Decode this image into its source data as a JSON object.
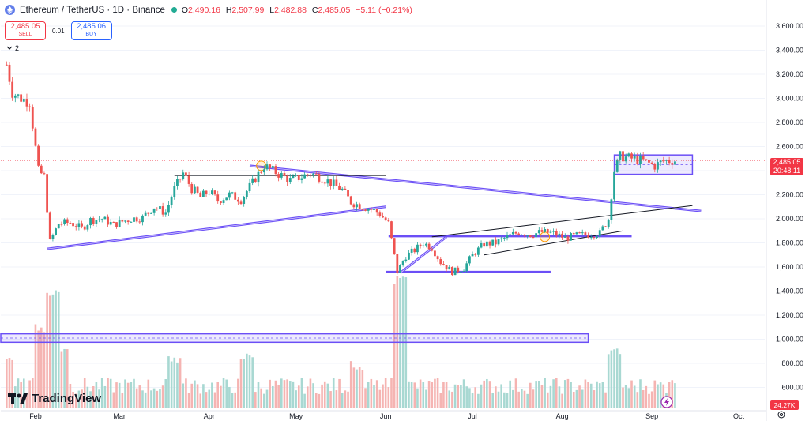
{
  "header": {
    "symbol_title": "Ethereum / TetherUS · 1D · Binance",
    "ohlc": [
      {
        "label": "O",
        "value": "2,490.16"
      },
      {
        "label": "H",
        "value": "2,507.99"
      },
      {
        "label": "L",
        "value": "2,482.88"
      },
      {
        "label": "C",
        "value": "2,485.05"
      },
      {
        "label": "",
        "value": "−5.11 (−0.21%)"
      }
    ],
    "sell_price": "2,485.05",
    "sell_label": "SELL",
    "spread": "0.01",
    "buy_price": "2,485.06",
    "buy_label": "BUY",
    "indicator_count": "2"
  },
  "price_axis": {
    "ticks": [
      "3,600.00",
      "3,400.00",
      "3,200.00",
      "3,000.00",
      "2,800.00",
      "2,600.00",
      "2,400.00",
      "2,200.00",
      "2,000.00",
      "1,800.00",
      "1,600.00",
      "1,400.00",
      "1,200.00",
      "1,000.00",
      "800.00",
      "600.00"
    ],
    "current_price": "2,485.05",
    "countdown": "20:48:11",
    "volume_value": "24.27K"
  },
  "time_axis": {
    "labels": [
      "Feb",
      "Mar",
      "Apr",
      "May",
      "Jun",
      "Jul",
      "Aug",
      "Sep",
      "Oct"
    ]
  },
  "brand": {
    "name": "TradingView"
  },
  "colors": {
    "up": "#26a69a",
    "down": "#ef5350",
    "drawing": "#6b4ff6",
    "accent_red": "#f23645",
    "accent_blue": "#2962ff"
  },
  "chart_data": {
    "type": "candlestick",
    "title": "Ethereum / TetherUS · 1D · Binance",
    "ylim": [
      500,
      3700
    ],
    "x_range": [
      "2024-01-20",
      "2024-10-10"
    ],
    "x_labels": [
      "Feb",
      "Mar",
      "Apr",
      "May",
      "Jun",
      "Jul",
      "Aug",
      "Sep",
      "Oct"
    ],
    "close_path": [
      [
        "2024-01-22",
        3280
      ],
      [
        "2024-01-24",
        3050
      ],
      [
        "2024-01-27",
        3000
      ],
      [
        "2024-01-30",
        2970
      ],
      [
        "2024-02-02",
        2400
      ],
      [
        "2024-02-04",
        2350
      ],
      [
        "2024-02-06",
        1810
      ],
      [
        "2024-02-09",
        1960
      ],
      [
        "2024-02-13",
        1970
      ],
      [
        "2024-02-17",
        1920
      ],
      [
        "2024-02-20",
        1990
      ],
      [
        "2024-02-24",
        2000
      ],
      [
        "2024-02-28",
        1950
      ],
      [
        "2024-03-01",
        1970
      ],
      [
        "2024-03-05",
        2000
      ],
      [
        "2024-03-09",
        2010
      ],
      [
        "2024-03-13",
        2100
      ],
      [
        "2024-03-17",
        2050
      ],
      [
        "2024-03-20",
        2250
      ],
      [
        "2024-03-23",
        2380
      ],
      [
        "2024-03-26",
        2250
      ],
      [
        "2024-03-29",
        2180
      ],
      [
        "2024-04-01",
        2230
      ],
      [
        "2024-04-04",
        2150
      ],
      [
        "2024-04-08",
        2200
      ],
      [
        "2024-04-12",
        2160
      ],
      [
        "2024-04-16",
        2300
      ],
      [
        "2024-04-20",
        2440
      ],
      [
        "2024-04-23",
        2400
      ],
      [
        "2024-04-26",
        2360
      ],
      [
        "2024-04-29",
        2320
      ],
      [
        "2024-05-03",
        2350
      ],
      [
        "2024-05-06",
        2380
      ],
      [
        "2024-05-10",
        2340
      ],
      [
        "2024-05-13",
        2300
      ],
      [
        "2024-05-17",
        2240
      ],
      [
        "2024-05-20",
        2140
      ],
      [
        "2024-05-23",
        2110
      ],
      [
        "2024-05-27",
        2080
      ],
      [
        "2024-05-30",
        2040
      ],
      [
        "2024-06-02",
        1960
      ],
      [
        "2024-06-05",
        1560
      ],
      [
        "2024-06-08",
        1690
      ],
      [
        "2024-06-11",
        1740
      ],
      [
        "2024-06-14",
        1800
      ],
      [
        "2024-06-17",
        1760
      ],
      [
        "2024-06-20",
        1640
      ],
      [
        "2024-06-24",
        1560
      ],
      [
        "2024-06-28",
        1590
      ],
      [
        "2024-07-01",
        1700
      ],
      [
        "2024-07-05",
        1790
      ],
      [
        "2024-07-09",
        1800
      ],
      [
        "2024-07-13",
        1850
      ],
      [
        "2024-07-17",
        1890
      ],
      [
        "2024-07-21",
        1870
      ],
      [
        "2024-07-25",
        1890
      ],
      [
        "2024-07-29",
        1880
      ],
      [
        "2024-08-02",
        1840
      ],
      [
        "2024-08-06",
        1860
      ],
      [
        "2024-08-10",
        1870
      ],
      [
        "2024-08-14",
        1880
      ],
      [
        "2024-08-17",
        2000
      ],
      [
        "2024-08-19",
        2400
      ],
      [
        "2024-08-21",
        2520
      ],
      [
        "2024-08-25",
        2500
      ],
      [
        "2024-08-29",
        2480
      ],
      [
        "2024-09-02",
        2440
      ],
      [
        "2024-09-05",
        2480
      ],
      [
        "2024-09-09",
        2485
      ]
    ],
    "volume_bars": [
      [
        "2024-01-22",
        720
      ],
      [
        "2024-02-03",
        860
      ],
      [
        "2024-02-07",
        1000
      ],
      [
        "2024-02-10",
        760
      ],
      [
        "2024-03-20",
        720
      ],
      [
        "2024-04-14",
        740
      ],
      [
        "2024-05-22",
        700
      ],
      [
        "2024-06-06",
        1060
      ],
      [
        "2024-08-19",
        760
      ],
      [
        "2024-09-09",
        620
      ]
    ],
    "annotations": [
      {
        "type": "horizontal_band",
        "y": [
          975,
          1045
        ],
        "x": [
          "2024-01-20",
          "2024-08-10"
        ]
      },
      {
        "type": "horizontal_band",
        "y": [
          2370,
          2530
        ],
        "x": [
          "2024-08-19",
          "2024-09-15"
        ]
      },
      {
        "type": "trendline",
        "from": [
          "2024-02-05",
          1750
        ],
        "to": [
          "2024-06-01",
          2100
        ]
      },
      {
        "type": "trendline",
        "from": [
          "2024-04-15",
          2440
        ],
        "to": [
          "2024-09-18",
          2065
        ]
      },
      {
        "type": "horizontal_line",
        "y": 2360,
        "x": [
          "2024-03-20",
          "2024-06-01"
        ]
      },
      {
        "type": "horizontal_line",
        "y": 1855,
        "x": [
          "2024-06-02",
          "2024-08-25"
        ]
      },
      {
        "type": "horizontal_line",
        "y": 1560,
        "x": [
          "2024-06-01",
          "2024-07-28"
        ]
      },
      {
        "type": "trendline",
        "from": [
          "2024-06-06",
          1550
        ],
        "to": [
          "2024-06-22",
          1850
        ]
      },
      {
        "type": "trendline",
        "from": [
          "2024-06-17",
          1850
        ],
        "to": [
          "2024-09-15",
          2110
        ]
      },
      {
        "type": "trendline",
        "from": [
          "2024-07-05",
          1700
        ],
        "to": [
          "2024-08-22",
          1900
        ]
      }
    ]
  }
}
